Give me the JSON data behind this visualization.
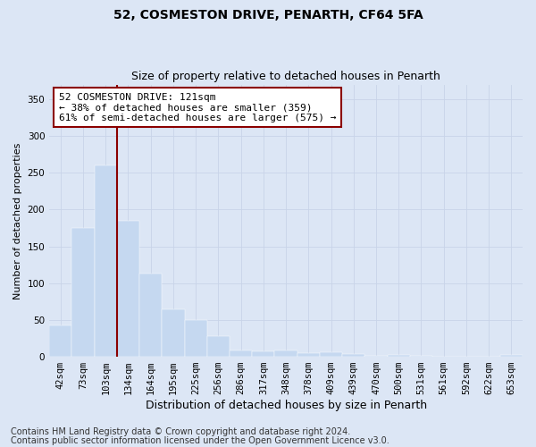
{
  "title1": "52, COSMESTON DRIVE, PENARTH, CF64 5FA",
  "title2": "Size of property relative to detached houses in Penarth",
  "xlabel": "Distribution of detached houses by size in Penarth",
  "ylabel": "Number of detached properties",
  "categories": [
    "42sqm",
    "73sqm",
    "103sqm",
    "134sqm",
    "164sqm",
    "195sqm",
    "225sqm",
    "256sqm",
    "286sqm",
    "317sqm",
    "348sqm",
    "378sqm",
    "409sqm",
    "439sqm",
    "470sqm",
    "500sqm",
    "531sqm",
    "561sqm",
    "592sqm",
    "622sqm",
    "653sqm"
  ],
  "values": [
    43,
    175,
    260,
    185,
    113,
    65,
    50,
    28,
    9,
    7,
    9,
    5,
    6,
    4,
    1,
    3,
    1,
    0,
    0,
    0,
    2
  ],
  "bar_color": "#c5d8f0",
  "bar_edgecolor": "#c5d8f0",
  "vline_color": "#8b0000",
  "vline_x_index": 2,
  "annotation_text": "52 COSMESTON DRIVE: 121sqm\n← 38% of detached houses are smaller (359)\n61% of semi-detached houses are larger (575) →",
  "annotation_box_edgecolor": "#8b0000",
  "annotation_box_facecolor": "#ffffff",
  "grid_color": "#c8d4e8",
  "background_color": "#dce6f5",
  "ylim": [
    0,
    370
  ],
  "yticks": [
    0,
    50,
    100,
    150,
    200,
    250,
    300,
    350
  ],
  "footer1": "Contains HM Land Registry data © Crown copyright and database right 2024.",
  "footer2": "Contains public sector information licensed under the Open Government Licence v3.0.",
  "title1_fontsize": 10,
  "title2_fontsize": 9,
  "xlabel_fontsize": 9,
  "ylabel_fontsize": 8,
  "tick_fontsize": 7.5,
  "annotation_fontsize": 8,
  "footer_fontsize": 7
}
